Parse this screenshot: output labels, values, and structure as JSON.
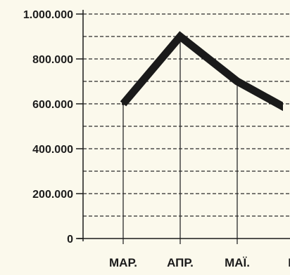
{
  "chart_data": {
    "type": "line",
    "categories": [
      "МАР.",
      "АПР.",
      "МАЇ.",
      "Ю"
    ],
    "series": [
      {
        "values": [
          600000,
          900000,
          700000,
          560000
        ]
      }
    ],
    "y_ticks": [
      "0",
      "200.000",
      "400.000",
      "600.000",
      "800.000",
      "1.000.000"
    ],
    "ylim": [
      0,
      1000000
    ],
    "grid": "horizontal dashed, every 100.000",
    "line_color": "#1a1a1a",
    "background_color": "#fbf9ec",
    "grid_color": "#2a2a2a"
  }
}
